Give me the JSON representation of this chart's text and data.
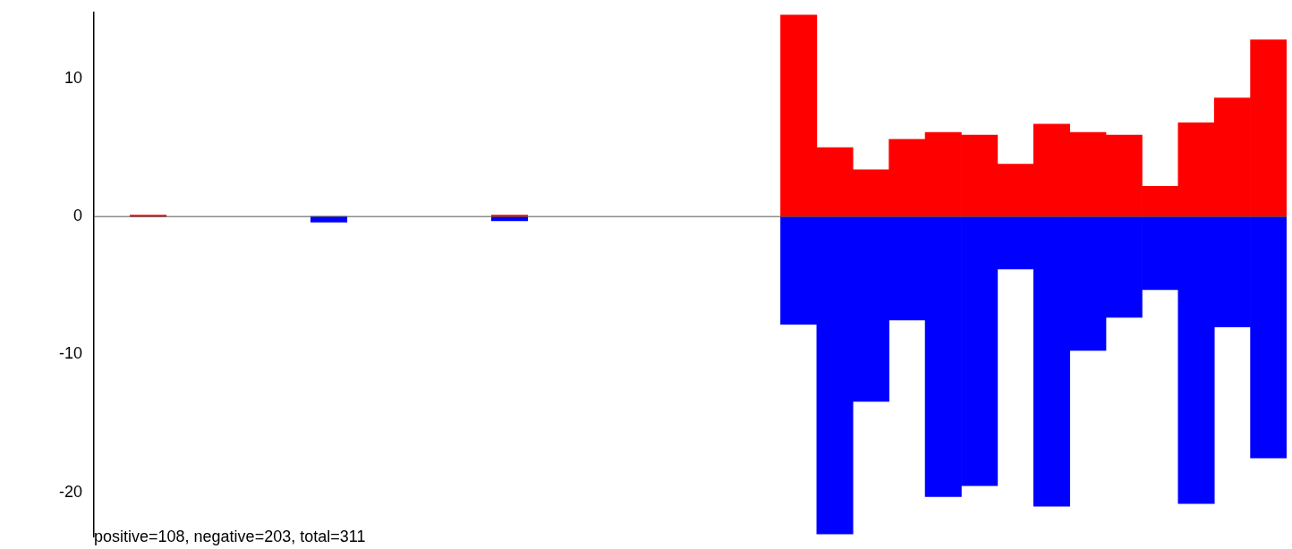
{
  "chart_data": {
    "type": "bar",
    "stacked": true,
    "categories": [
      null,
      null,
      null,
      null,
      null,
      null,
      null,
      null,
      null,
      null,
      null,
      null,
      null,
      null,
      null,
      null,
      null,
      null,
      null,
      null,
      null,
      null,
      null,
      null,
      null,
      null,
      null,
      null,
      null,
      null,
      null,
      null,
      null
    ],
    "series": [
      {
        "color": "#ff0000",
        "values": [
          null,
          0.1,
          null,
          null,
          null,
          null,
          null,
          null,
          null,
          null,
          null,
          0.1,
          null,
          null,
          null,
          null,
          null,
          null,
          null,
          14.6,
          5.0,
          3.4,
          5.6,
          6.1,
          5.9,
          3.8,
          6.7,
          6.1,
          5.9,
          2.2,
          6.8,
          8.6,
          12.8
        ]
      },
      {
        "color": "#0000ff",
        "values": [
          null,
          null,
          null,
          null,
          null,
          null,
          -0.4,
          null,
          null,
          null,
          null,
          -0.3,
          null,
          null,
          null,
          null,
          null,
          null,
          null,
          -7.8,
          -23.0,
          -13.4,
          -7.5,
          -20.3,
          -19.5,
          -3.8,
          -21.0,
          -9.7,
          -7.3,
          -5.3,
          -20.8,
          -8.0,
          -17.5
        ]
      }
    ],
    "ylim": [
      -23.2,
      14.8
    ],
    "yticks": [
      -20,
      -10,
      0,
      10
    ],
    "grid": false,
    "legend": false,
    "tick_labels": "y",
    "ref_lines": [
      {
        "axis": "y",
        "value": 0,
        "color": "#555555"
      }
    ],
    "annotations": [
      "positive=108, negative=203, total=311"
    ]
  }
}
